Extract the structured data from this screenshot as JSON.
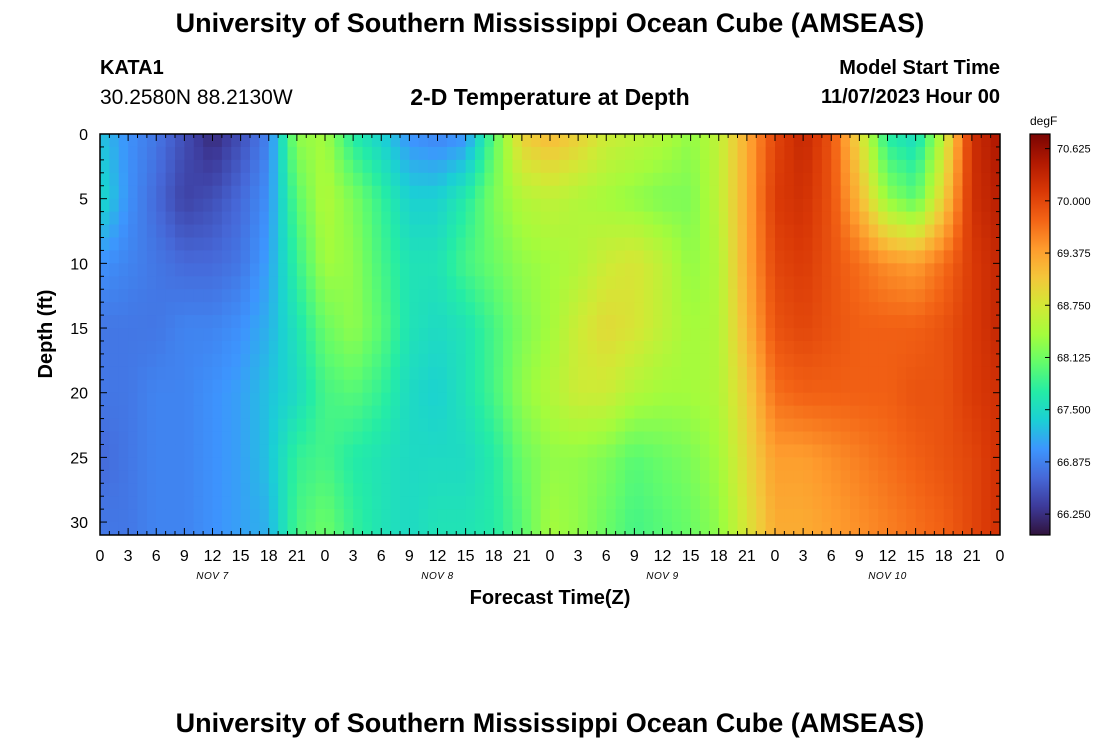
{
  "header": {
    "title": "University of Southern Mississippi Ocean Cube (AMSEAS)",
    "station_name": "KATA1",
    "station_coords": "30.2580N  88.2130W",
    "plot_title": "2-D Temperature at Depth",
    "model_start_label": "Model Start Time",
    "model_start_value": "11/07/2023 Hour 00"
  },
  "footer": {
    "title": "University of Southern Mississippi Ocean Cube (AMSEAS)"
  },
  "chart_data": {
    "type": "heatmap",
    "title": "2-D Temperature at Depth",
    "xlabel": "Forecast Time(Z)",
    "ylabel": "Depth (ft)",
    "x_ticks": [
      "0",
      "3",
      "6",
      "9",
      "12",
      "15",
      "18",
      "21",
      "0",
      "3",
      "6",
      "9",
      "12",
      "15",
      "18",
      "21",
      "0",
      "3",
      "6",
      "9",
      "12",
      "15",
      "18",
      "21",
      "0",
      "3",
      "6",
      "9",
      "12",
      "15",
      "18",
      "21",
      "0"
    ],
    "day_labels": [
      {
        "label": "NOV 7",
        "hour": 12
      },
      {
        "label": "NOV 8",
        "hour": 36
      },
      {
        "label": "NOV 9",
        "hour": 60
      },
      {
        "label": "NOV 10",
        "hour": 84
      }
    ],
    "x_range_hours": [
      0,
      96
    ],
    "y_ticks": [
      "0",
      "5",
      "10",
      "15",
      "20",
      "25",
      "30"
    ],
    "y_range_ft": [
      0,
      31
    ],
    "colorbar": {
      "unit": "degF",
      "ticks": [
        "70.625",
        "70.000",
        "69.375",
        "68.750",
        "68.125",
        "67.500",
        "66.875",
        "66.250"
      ],
      "range": [
        66.0,
        70.8
      ],
      "colors": [
        "#30123b",
        "#3d3a9a",
        "#4668d8",
        "#3d95fe",
        "#1bcfd5",
        "#24eca6",
        "#62fc6b",
        "#a4fc3c",
        "#d2e935",
        "#f4c63a",
        "#fe9b2d",
        "#f36315",
        "#d93806",
        "#b11901",
        "#7a0403"
      ]
    },
    "time_hours": [
      0,
      3,
      6,
      9,
      12,
      15,
      18,
      21,
      24,
      27,
      30,
      33,
      36,
      39,
      42,
      45,
      48,
      51,
      54,
      57,
      60,
      63,
      66,
      69,
      72,
      75,
      78,
      81,
      84,
      87,
      90,
      93,
      96
    ],
    "depths_ft": [
      0,
      5,
      10,
      15,
      20,
      25,
      30
    ],
    "temperature_degF": [
      [
        67.3,
        67.0,
        66.8,
        66.5,
        66.2,
        66.5,
        66.9,
        68.3,
        68.4,
        67.7,
        67.4,
        67.0,
        66.9,
        67.0,
        68.0,
        69.0,
        69.2,
        69.0,
        68.7,
        68.6,
        68.5,
        68.3,
        68.6,
        69.3,
        70.0,
        70.3,
        69.9,
        68.9,
        67.7,
        67.5,
        68.6,
        70.2,
        70.5
      ],
      [
        67.5,
        67.0,
        66.7,
        66.4,
        66.5,
        66.7,
        67.0,
        68.0,
        68.5,
        68.2,
        67.8,
        67.4,
        67.4,
        67.7,
        68.2,
        68.5,
        68.6,
        68.5,
        68.4,
        68.3,
        68.2,
        68.2,
        68.6,
        69.3,
        70.1,
        70.2,
        69.9,
        69.2,
        68.3,
        68.0,
        69.0,
        70.2,
        70.4
      ],
      [
        67.0,
        66.9,
        66.8,
        66.7,
        66.7,
        66.8,
        67.1,
        67.8,
        68.4,
        68.3,
        67.9,
        67.6,
        67.6,
        67.9,
        68.1,
        68.3,
        68.4,
        68.5,
        68.7,
        68.8,
        68.6,
        68.3,
        68.5,
        69.3,
        70.0,
        70.1,
        69.9,
        69.7,
        69.5,
        69.4,
        69.7,
        70.1,
        70.3
      ],
      [
        66.8,
        66.8,
        66.8,
        66.9,
        66.9,
        67.0,
        67.2,
        67.6,
        68.1,
        68.3,
        68.0,
        67.6,
        67.5,
        67.6,
        67.9,
        68.2,
        68.4,
        68.7,
        68.9,
        68.8,
        68.6,
        68.4,
        68.5,
        69.2,
        69.9,
        70.0,
        69.9,
        69.8,
        69.8,
        69.8,
        69.9,
        70.1,
        70.3
      ],
      [
        66.8,
        66.8,
        66.9,
        66.9,
        67.0,
        67.1,
        67.3,
        67.5,
        67.9,
        68.0,
        67.8,
        67.5,
        67.4,
        67.6,
        67.9,
        68.3,
        68.5,
        68.7,
        68.7,
        68.5,
        68.4,
        68.4,
        68.5,
        69.0,
        69.7,
        69.8,
        69.8,
        69.8,
        69.8,
        69.9,
        69.9,
        70.1,
        70.2
      ],
      [
        66.7,
        66.8,
        66.9,
        66.9,
        67.0,
        67.1,
        67.3,
        67.8,
        67.9,
        67.7,
        67.6,
        67.5,
        67.5,
        67.5,
        67.7,
        68.1,
        68.3,
        68.3,
        68.2,
        68.0,
        68.1,
        68.2,
        68.4,
        68.9,
        69.4,
        69.4,
        69.5,
        69.6,
        69.7,
        69.8,
        69.9,
        70.0,
        70.2
      ],
      [
        66.8,
        66.8,
        66.9,
        66.9,
        67.0,
        67.1,
        67.2,
        67.9,
        68.1,
        67.8,
        67.6,
        67.5,
        67.6,
        67.6,
        67.7,
        68.0,
        68.4,
        68.3,
        68.1,
        67.9,
        68.0,
        68.1,
        68.3,
        68.8,
        69.3,
        69.3,
        69.4,
        69.5,
        69.6,
        69.7,
        69.8,
        70.0,
        70.2
      ]
    ]
  }
}
